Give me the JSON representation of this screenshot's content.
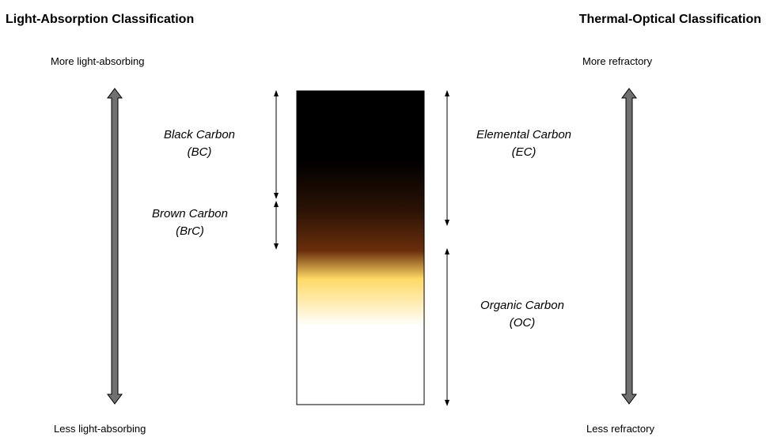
{
  "left_panel": {
    "title": "Light-Absorption Classification",
    "top_label": "More light-absorbing",
    "bottom_label": "Less light-absorbing",
    "categories": [
      {
        "line1": "Black Carbon",
        "line2": "(BC)"
      },
      {
        "line1": "Brown Carbon",
        "line2": "(BrC)"
      }
    ]
  },
  "right_panel": {
    "title": "Thermal-Optical Classification",
    "top_label": "More refractory",
    "bottom_label": "Less refractory",
    "categories": [
      {
        "line1": "Elemental Carbon",
        "line2": "(EC)"
      },
      {
        "line1": "Organic Carbon",
        "line2": "(OC)"
      }
    ]
  },
  "colors": {
    "gradient": [
      "#000000",
      "#000000",
      "#2a1205",
      "#6a2e0c",
      "#ffd966",
      "#ffffff"
    ],
    "axis_arrow": "#707070"
  }
}
